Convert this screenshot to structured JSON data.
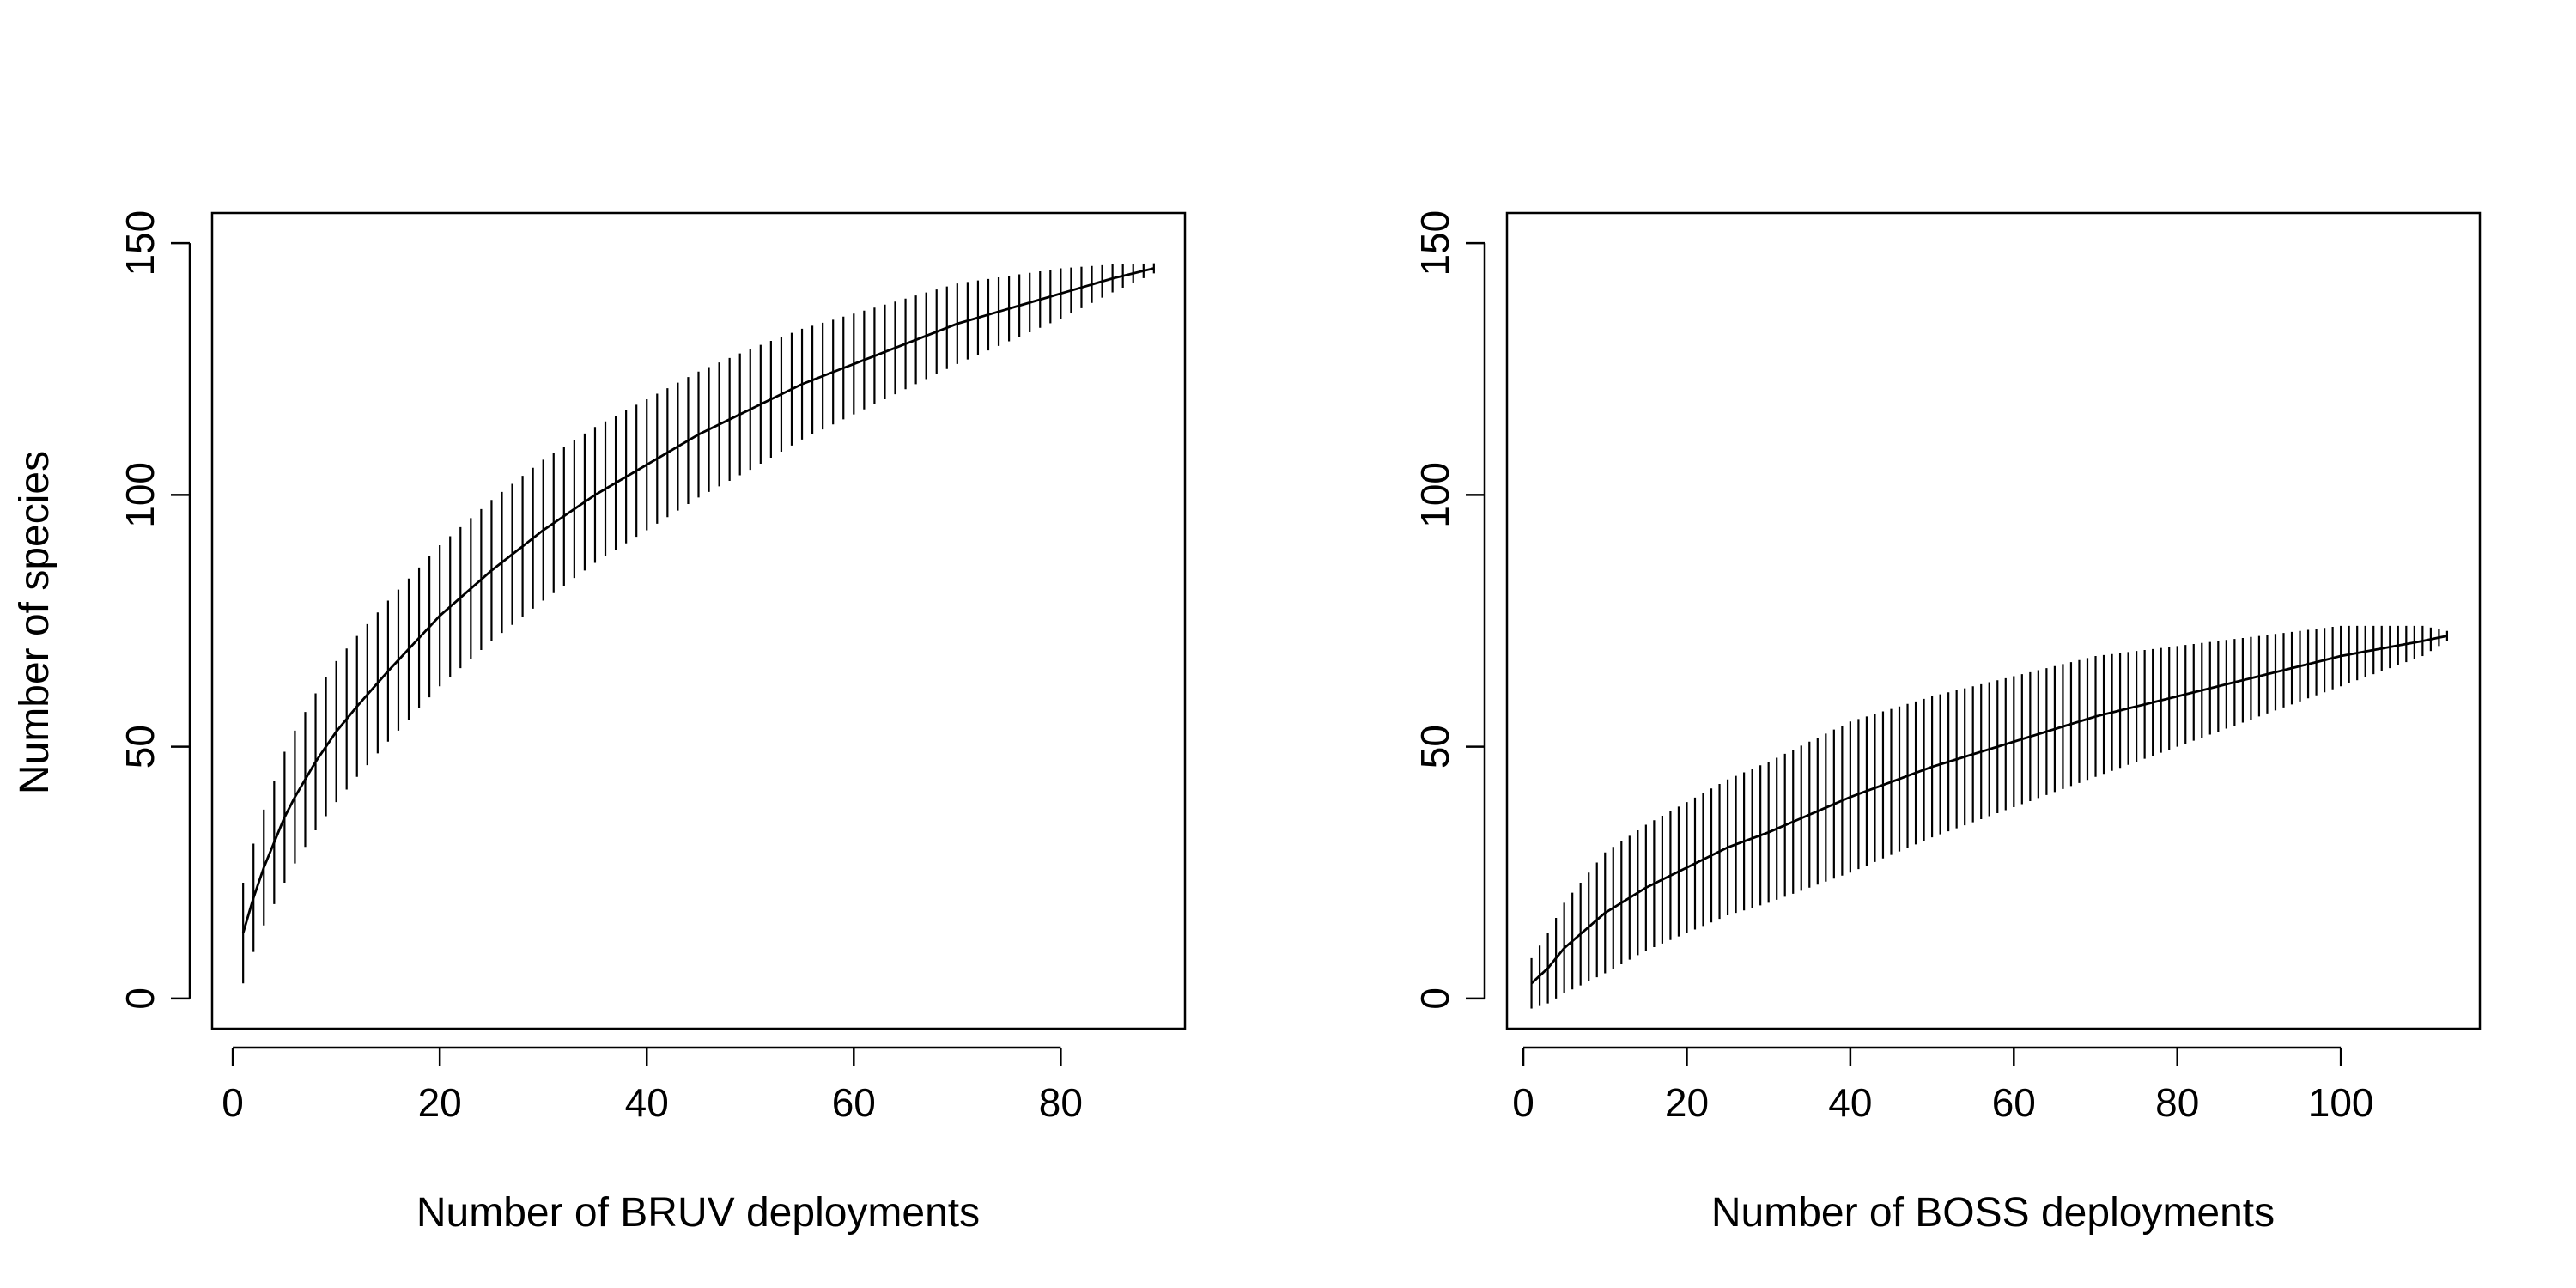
{
  "figure": {
    "ylabel": "Number of species"
  },
  "chart_data": [
    {
      "type": "line",
      "xlabel": "Number of BRUV deployments",
      "ylabel": "Number of species",
      "xlim": [
        -2,
        92
      ],
      "ylim": [
        -6,
        156
      ],
      "xticks": [
        0,
        20,
        40,
        60,
        80
      ],
      "yticks": [
        0,
        50,
        100,
        150
      ],
      "grid": false,
      "legend": "none",
      "n_points": 89,
      "curve": {
        "x": [
          1,
          2,
          3,
          4,
          5,
          6,
          8,
          10,
          12,
          15,
          20,
          25,
          30,
          35,
          40,
          45,
          50,
          55,
          60,
          65,
          70,
          75,
          80,
          85,
          89
        ],
        "y": [
          13,
          20,
          26,
          31,
          36,
          40,
          47,
          53,
          58,
          65,
          76,
          85,
          93,
          100,
          106,
          112,
          117,
          122,
          126,
          130,
          134,
          137,
          140,
          143,
          145
        ]
      },
      "error_half_width": {
        "x": [
          1,
          5,
          10,
          20,
          30,
          40,
          50,
          60,
          70,
          80,
          89
        ],
        "y": [
          10,
          13,
          14,
          14,
          14,
          13,
          12,
          10,
          8,
          5,
          1
        ]
      }
    },
    {
      "type": "line",
      "xlabel": "Number of BOSS deployments",
      "ylabel": "",
      "xlim": [
        -2,
        117
      ],
      "ylim": [
        -6,
        156
      ],
      "xticks": [
        0,
        20,
        40,
        60,
        80,
        100
      ],
      "yticks": [
        0,
        50,
        100,
        150
      ],
      "grid": false,
      "legend": "none",
      "n_points": 113,
      "curve": {
        "x": [
          1,
          3,
          5,
          10,
          15,
          20,
          25,
          30,
          40,
          50,
          60,
          70,
          80,
          90,
          100,
          110,
          113
        ],
        "y": [
          3,
          6,
          10,
          17,
          22,
          26,
          30,
          33,
          40,
          46,
          51,
          56,
          60,
          64,
          68,
          71,
          72
        ]
      },
      "error_half_width": {
        "x": [
          1,
          5,
          10,
          20,
          30,
          40,
          50,
          60,
          70,
          80,
          90,
          100,
          110,
          113
        ],
        "y": [
          5,
          9,
          12,
          13,
          14,
          15,
          14,
          13,
          12,
          10,
          8,
          6,
          3,
          1
        ]
      }
    }
  ]
}
